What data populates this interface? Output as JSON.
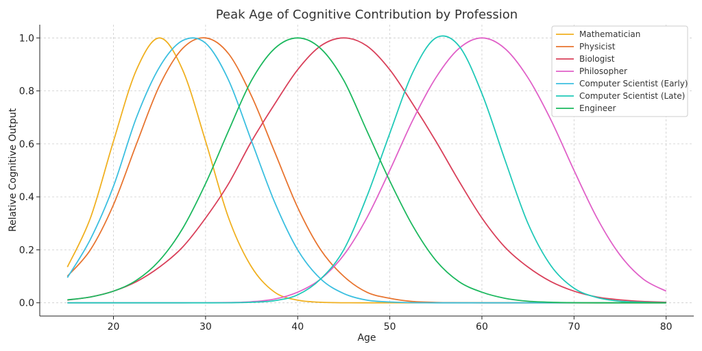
{
  "chart_data": {
    "type": "line",
    "title": "Peak Age of Cognitive Contribution by Profession",
    "xlabel": "Age",
    "ylabel": "Relative Cognitive Output",
    "xlim": [
      12,
      83
    ],
    "ylim": [
      -0.05,
      1.05
    ],
    "xticks": [
      20,
      30,
      40,
      50,
      60,
      70,
      80
    ],
    "yticks": [
      0.0,
      0.2,
      0.4,
      0.6,
      0.8,
      1.0
    ],
    "grid": true,
    "legend_position": "top-right",
    "x": [
      15,
      17.5,
      20,
      22.5,
      25,
      27.5,
      30,
      32.5,
      35,
      37.5,
      40,
      42.5,
      45,
      47.5,
      50,
      52.5,
      55,
      57.5,
      60,
      62.5,
      65,
      67.5,
      70,
      72.5,
      75,
      77.5,
      80
    ],
    "series": [
      {
        "name": "Mathematician",
        "color": "#f0b020",
        "values": [
          0.135,
          0.32,
          0.61,
          0.88,
          1.0,
          0.88,
          0.61,
          0.32,
          0.135,
          0.04,
          0.01,
          0.002,
          0.0003,
          0,
          0,
          0,
          0,
          0,
          0,
          0,
          0,
          0,
          0,
          0,
          0,
          0,
          0
        ]
      },
      {
        "name": "Physicist",
        "color": "#e8742f",
        "values": [
          0.1,
          0.2,
          0.37,
          0.6,
          0.82,
          0.96,
          1.0,
          0.94,
          0.78,
          0.57,
          0.36,
          0.2,
          0.1,
          0.04,
          0.017,
          0.005,
          0.0015,
          0.0004,
          0,
          0,
          0,
          0,
          0,
          0,
          0,
          0,
          0
        ]
      },
      {
        "name": "Biologist",
        "color": "#d9405a",
        "values": [
          0.01,
          0.022,
          0.044,
          0.08,
          0.135,
          0.21,
          0.32,
          0.45,
          0.61,
          0.75,
          0.88,
          0.97,
          1.0,
          0.97,
          0.88,
          0.75,
          0.61,
          0.46,
          0.32,
          0.21,
          0.135,
          0.08,
          0.044,
          0.022,
          0.011,
          0.005,
          0.002
        ]
      },
      {
        "name": "Philosopher",
        "color": "#e060c8",
        "values": [
          0,
          0,
          0,
          0,
          0,
          0,
          0.0003,
          0.001,
          0.004,
          0.014,
          0.04,
          0.09,
          0.18,
          0.32,
          0.5,
          0.69,
          0.85,
          0.96,
          1.0,
          0.96,
          0.85,
          0.69,
          0.5,
          0.32,
          0.18,
          0.09,
          0.044
        ]
      },
      {
        "name": "Computer Scientist (Early)",
        "color": "#3bbfe0",
        "values": [
          0.095,
          0.24,
          0.44,
          0.7,
          0.89,
          0.99,
          0.98,
          0.84,
          0.61,
          0.38,
          0.2,
          0.09,
          0.035,
          0.01,
          0.003,
          0.0005,
          0,
          0,
          0,
          0,
          0,
          0,
          0,
          0,
          0,
          0,
          0
        ]
      },
      {
        "name": "Computer Scientist (Late)",
        "color": "#20c9b8",
        "values": [
          0,
          0,
          0,
          0,
          0,
          0,
          0,
          0.0003,
          0.002,
          0.008,
          0.03,
          0.09,
          0.2,
          0.4,
          0.64,
          0.87,
          1.0,
          0.97,
          0.79,
          0.54,
          0.3,
          0.14,
          0.055,
          0.02,
          0.006,
          0.002,
          0.0005
        ]
      },
      {
        "name": "Engineer",
        "color": "#1cb85e",
        "values": [
          0.011,
          0.022,
          0.044,
          0.085,
          0.16,
          0.28,
          0.45,
          0.65,
          0.84,
          0.96,
          1.0,
          0.96,
          0.84,
          0.65,
          0.46,
          0.29,
          0.16,
          0.08,
          0.04,
          0.017,
          0.006,
          0.002,
          0.0005,
          0,
          0,
          0,
          0
        ]
      }
    ]
  }
}
